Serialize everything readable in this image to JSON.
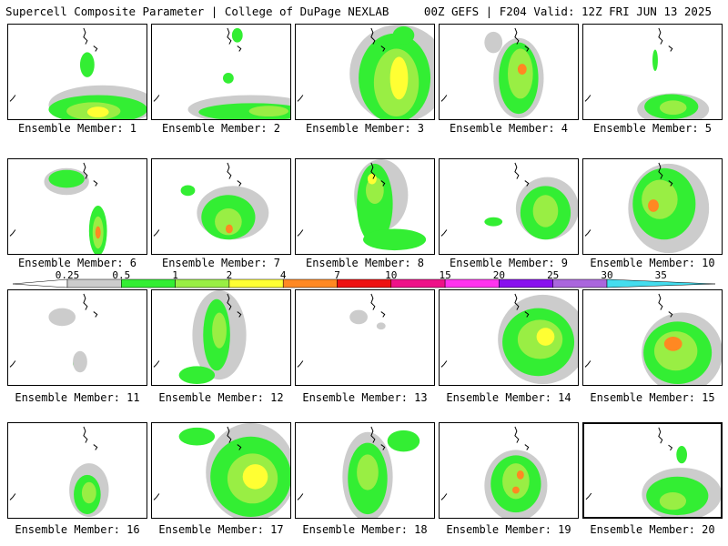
{
  "header": {
    "left": "Supercell Composite Parameter | College of DuPage NEXLAB",
    "right": "00Z GEFS | F204 Valid: 12Z FRI JUN 13 2025"
  },
  "colorbar": {
    "labels": [
      "0.25",
      "0.5",
      "1",
      "2",
      "4",
      "7",
      "10",
      "15",
      "20",
      "25",
      "30",
      "35"
    ],
    "colors": [
      "#ffffff",
      "#cccccc",
      "#33ee33",
      "#99ee44",
      "#ffff33",
      "#ff8822",
      "#ee1111",
      "#ee1188",
      "#ff33ee",
      "#8811ee",
      "#aa66dd",
      "#44ddee"
    ]
  },
  "panels": [
    {
      "label": "Ensemble Member: 1"
    },
    {
      "label": "Ensemble Member: 2"
    },
    {
      "label": "Ensemble Member: 3"
    },
    {
      "label": "Ensemble Member: 4"
    },
    {
      "label": "Ensemble Member: 5"
    },
    {
      "label": "Ensemble Member: 6"
    },
    {
      "label": "Ensemble Member: 7"
    },
    {
      "label": "Ensemble Member: 8"
    },
    {
      "label": "Ensemble Member: 9"
    },
    {
      "label": "Ensemble Member: 10"
    },
    {
      "label": "Ensemble Member: 11"
    },
    {
      "label": "Ensemble Member: 12"
    },
    {
      "label": "Ensemble Member: 13"
    },
    {
      "label": "Ensemble Member: 14"
    },
    {
      "label": "Ensemble Member: 15"
    },
    {
      "label": "Ensemble Member: 16"
    },
    {
      "label": "Ensemble Member: 17"
    },
    {
      "label": "Ensemble Member: 18"
    },
    {
      "label": "Ensemble Member: 19"
    },
    {
      "label": "Ensemble Member: 20"
    }
  ]
}
